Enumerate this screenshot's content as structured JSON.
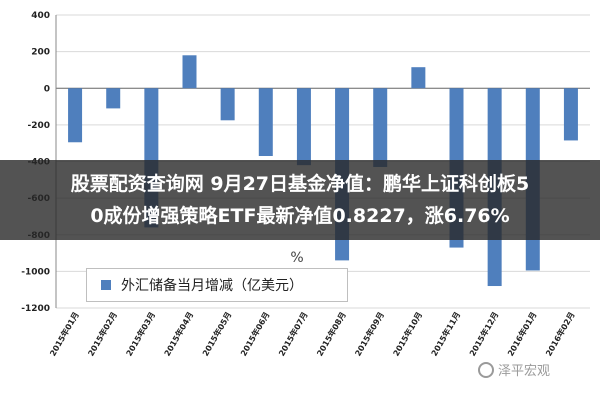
{
  "headline": {
    "line1": "股票配资查询网 9月27日基金净值：鹏华上证科创板5",
    "line2": "0成份增强策略ETF最新净值0.8227，涨6.76%",
    "fragment": "%"
  },
  "watermark": {
    "text": "泽平宏观",
    "icon": "circle-logo-icon"
  },
  "chart_data": {
    "type": "bar",
    "categories": [
      "2015年01月",
      "2015年02月",
      "2015年03月",
      "2015年04月",
      "2015年05月",
      "2015年06月",
      "2015年07月",
      "2015年08月",
      "2015年09月",
      "2015年10月",
      "2015年11月",
      "2015年12月",
      "2016年01月",
      "2016年02月"
    ],
    "series": [
      {
        "name": "外汇储备当月增减（亿美元）",
        "color": "#4f7fbd",
        "values": [
          -295,
          -110,
          -760,
          180,
          -175,
          -370,
          -420,
          -940,
          -430,
          115,
          -870,
          -1080,
          -995,
          -285
        ]
      }
    ],
    "yticks": [
      400,
      200,
      0,
      -200,
      -400,
      -600,
      -800,
      -1000,
      -1200
    ],
    "ytick_labels": [
      "400",
      "200",
      "0",
      "-200",
      "-400",
      "-600",
      "-800",
      "-1000",
      "-1200"
    ],
    "ylim": [
      -1200,
      400
    ],
    "grid": true,
    "legend": {
      "label": "外汇储备当月增减（亿美元）",
      "placement": "bottom-left"
    }
  }
}
